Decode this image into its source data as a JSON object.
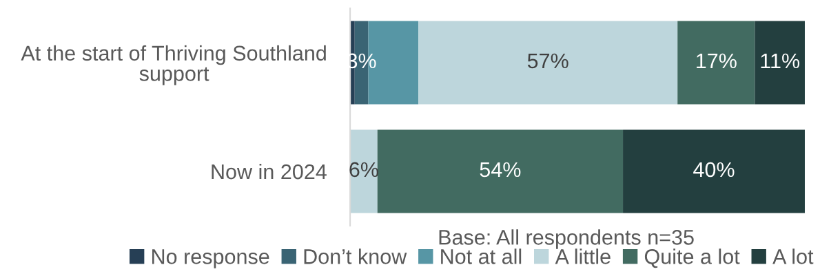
{
  "chart_data": {
    "type": "bar",
    "orientation": "horizontal",
    "stacked": true,
    "tick_labels": "y",
    "legend": "bottom",
    "categories": [
      "At the start of Thriving Southland support",
      "Now in 2024"
    ],
    "series": [
      {
        "name": "No response",
        "color": "#263f55",
        "values": [
          1,
          0
        ],
        "value_labels": [
          null,
          null
        ]
      },
      {
        "name": "Don’t know",
        "color": "#3a6474",
        "values": [
          3,
          0
        ],
        "value_labels": [
          "3%",
          null
        ]
      },
      {
        "name": "Not at all",
        "color": "#5796a5",
        "values": [
          11,
          0
        ],
        "value_labels": [
          null,
          null
        ]
      },
      {
        "name": "A little",
        "color": "#bdd6dc",
        "values": [
          57,
          6
        ],
        "value_labels": [
          "57%",
          "6%"
        ]
      },
      {
        "name": "Quite a lot",
        "color": "#426b61",
        "values": [
          17,
          54
        ],
        "value_labels": [
          "17%",
          "54%"
        ]
      },
      {
        "name": "A lot",
        "color": "#233f3f",
        "values": [
          11,
          40
        ],
        "value_labels": [
          "11%",
          "40%"
        ]
      }
    ],
    "annotations": [
      "Base: All respondents n=35"
    ]
  }
}
